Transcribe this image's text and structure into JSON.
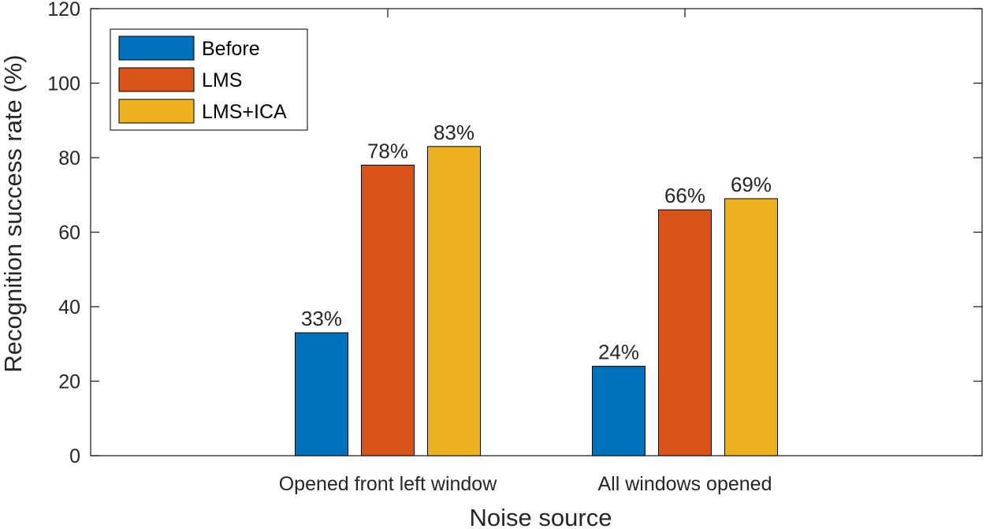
{
  "chart_data": {
    "type": "bar",
    "categories": [
      "Opened front left window",
      "All windows opened"
    ],
    "series": [
      {
        "name": "Before",
        "values": [
          33,
          24
        ],
        "color": "#0072BD",
        "labels": [
          "33%",
          "24%"
        ]
      },
      {
        "name": "LMS",
        "values": [
          78,
          66
        ],
        "color": "#D95319",
        "labels": [
          "78%",
          "66%"
        ]
      },
      {
        "name": "LMS+ICA",
        "values": [
          83,
          69
        ],
        "color": "#EDB120",
        "labels": [
          "83%",
          "69%"
        ]
      }
    ],
    "xlabel": "Noise source",
    "ylabel": "Recognition success rate (%)",
    "ylim": [
      0,
      120
    ],
    "yticks": [
      0,
      20,
      40,
      60,
      80,
      100,
      120
    ],
    "grid": false,
    "legend_position": "top-left"
  }
}
